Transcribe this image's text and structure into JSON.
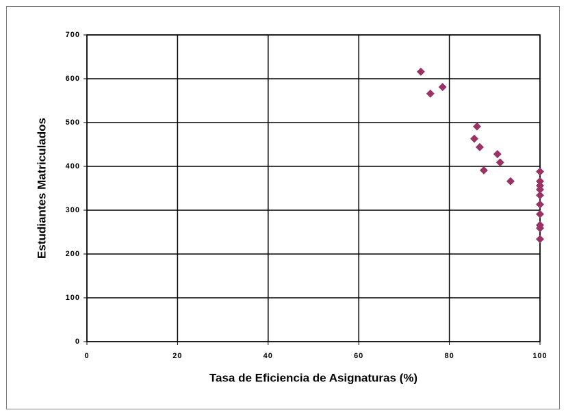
{
  "chart_data": {
    "type": "scatter",
    "xlabel": "Tasa de Eficiencia de Asignaturas (%)",
    "ylabel": "Estudiantes Matriculados",
    "series": [
      {
        "color": "#993366",
        "x": [
          73.7,
          75.8,
          78.5,
          86.1,
          85.5,
          86.7,
          87.6,
          90.6,
          91.2,
          93.5,
          100,
          100,
          100,
          100,
          100,
          100,
          100,
          100,
          100,
          100
        ],
        "values": [
          616,
          566,
          581,
          491,
          463,
          444,
          391,
          428,
          409,
          366,
          388,
          366,
          356,
          347,
          334,
          313,
          291,
          266,
          259,
          234
        ]
      }
    ],
    "xlim": [
      0,
      100
    ],
    "xticks": [
      0,
      20,
      40,
      60,
      80,
      100
    ],
    "ylim": [
      0,
      700
    ],
    "yticks": [
      0,
      100,
      200,
      300,
      400,
      500,
      600,
      700
    ],
    "grid": true
  }
}
